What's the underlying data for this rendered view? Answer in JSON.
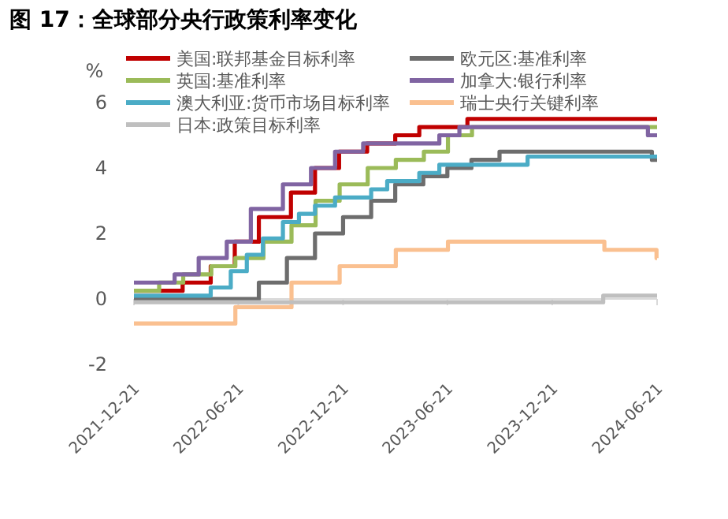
{
  "chart_data": {
    "type": "step",
    "title": "图 17：全球部分央行政策利率变化",
    "ylabel": "%",
    "xlim": [
      "2021-12-21",
      "2024-06-21"
    ],
    "xticks": [
      "2021-12-21",
      "2022-06-21",
      "2022-12-21",
      "2023-06-21",
      "2023-12-21",
      "2024-06-21"
    ],
    "ylim": [
      -2,
      6
    ],
    "yticks": [
      -2,
      0,
      2,
      4,
      6
    ],
    "legend": "top left",
    "line_style": "solid",
    "marker": "none",
    "series": [
      {
        "name": "美国:联邦基金目标利率",
        "color": "#c00000",
        "x": [
          "2021-12-21",
          "2022-03-16",
          "2022-05-04",
          "2022-06-15",
          "2022-07-27",
          "2022-09-21",
          "2022-11-02",
          "2022-12-14",
          "2023-02-01",
          "2023-03-22",
          "2023-05-03",
          "2023-07-26",
          "2024-06-21"
        ],
        "values": [
          0.25,
          0.5,
          1.0,
          1.75,
          2.5,
          3.25,
          4.0,
          4.5,
          4.75,
          5.0,
          5.25,
          5.5,
          5.5
        ]
      },
      {
        "name": "欧元区:基准利率",
        "color": "#6d6d6d",
        "x": [
          "2021-12-21",
          "2022-07-27",
          "2022-09-14",
          "2022-11-02",
          "2022-12-21",
          "2023-02-08",
          "2023-03-22",
          "2023-05-10",
          "2023-06-21",
          "2023-08-02",
          "2023-09-20",
          "2024-06-12",
          "2024-06-21"
        ],
        "values": [
          0,
          0.5,
          1.25,
          2.0,
          2.5,
          3.0,
          3.5,
          3.75,
          4.0,
          4.25,
          4.5,
          4.25,
          4.25
        ]
      },
      {
        "name": "英国:基准利率",
        "color": "#9bbb59",
        "x": [
          "2021-12-21",
          "2022-02-03",
          "2022-03-17",
          "2022-05-05",
          "2022-06-16",
          "2022-08-04",
          "2022-09-22",
          "2022-11-03",
          "2022-12-15",
          "2023-02-02",
          "2023-03-23",
          "2023-05-11",
          "2023-06-22",
          "2023-08-03",
          "2024-06-21"
        ],
        "values": [
          0.25,
          0.5,
          0.75,
          1.0,
          1.25,
          1.75,
          2.25,
          3.0,
          3.5,
          4.0,
          4.25,
          4.5,
          5.0,
          5.25,
          5.25
        ]
      },
      {
        "name": "加拿大:银行利率",
        "color": "#8064a2",
        "x": [
          "2021-12-21",
          "2022-03-02",
          "2022-04-13",
          "2022-06-01",
          "2022-07-13",
          "2022-09-07",
          "2022-10-26",
          "2022-12-07",
          "2023-01-25",
          "2023-06-07",
          "2023-07-12",
          "2024-06-05",
          "2024-06-21"
        ],
        "values": [
          0.5,
          0.75,
          1.25,
          1.75,
          2.75,
          3.5,
          4.0,
          4.5,
          4.75,
          5.0,
          5.25,
          5.0,
          5.0
        ]
      },
      {
        "name": "澳大利亚:货币市场目标利率",
        "color": "#4bacc6",
        "x": [
          "2021-12-21",
          "2022-05-04",
          "2022-06-08",
          "2022-07-06",
          "2022-08-03",
          "2022-09-07",
          "2022-10-05",
          "2022-11-02",
          "2022-12-07",
          "2023-02-08",
          "2023-03-08",
          "2023-05-03",
          "2023-06-07",
          "2023-11-08",
          "2024-06-21"
        ],
        "values": [
          0.1,
          0.35,
          0.85,
          1.35,
          1.85,
          2.35,
          2.6,
          2.85,
          3.1,
          3.35,
          3.6,
          3.85,
          4.1,
          4.35,
          4.35
        ]
      },
      {
        "name": "瑞士央行关键利率",
        "color": "#fac090",
        "x": [
          "2021-12-21",
          "2022-06-16",
          "2022-09-22",
          "2022-12-15",
          "2023-03-23",
          "2023-06-22",
          "2024-03-21",
          "2024-06-20",
          "2024-06-21"
        ],
        "values": [
          -0.75,
          -0.25,
          0.5,
          1.0,
          1.5,
          1.75,
          1.5,
          1.25,
          1.25
        ]
      },
      {
        "name": "日本:政策目标利率",
        "color": "#bfbfbf",
        "x": [
          "2021-12-21",
          "2024-03-19",
          "2024-06-21"
        ],
        "values": [
          -0.1,
          0.1,
          0.1
        ]
      }
    ]
  }
}
